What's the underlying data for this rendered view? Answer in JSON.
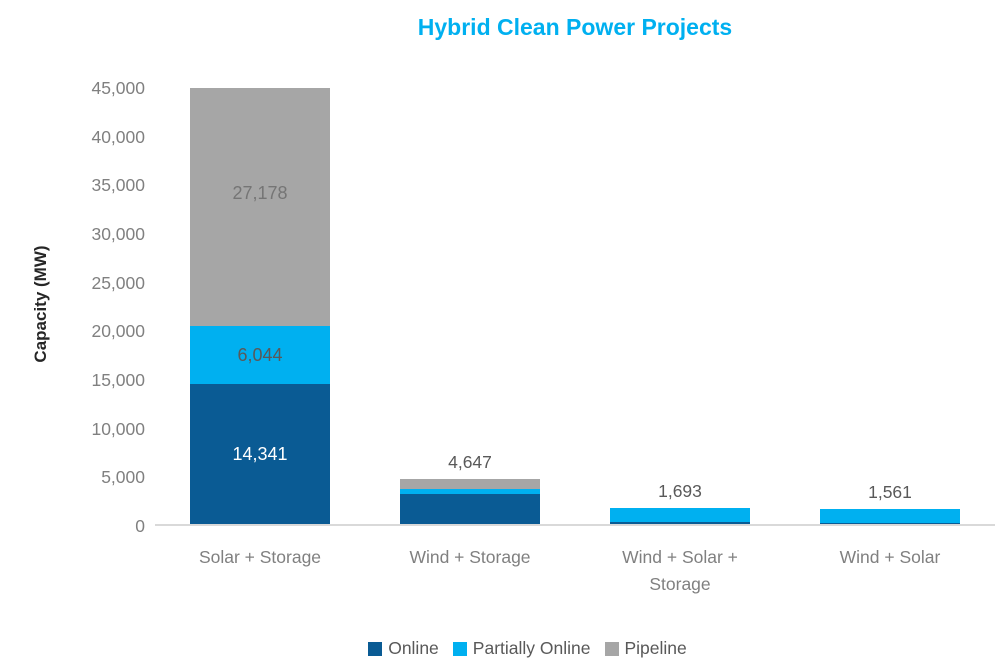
{
  "title_color": "#00B0F0",
  "chart_data": {
    "type": "bar",
    "stacked": true,
    "title": "Hybrid Clean Power Projects",
    "xlabel": "",
    "ylabel": "Capacity (MW)",
    "ylim": [
      0,
      45000
    ],
    "ytick_step": 5000,
    "grid": false,
    "legend_position": "bottom",
    "yticks": [
      "45,000",
      "40,000",
      "35,000",
      "30,000",
      "25,000",
      "20,000",
      "15,000",
      "10,000",
      "5,000",
      "0"
    ],
    "categories": [
      "Solar + Storage",
      "Wind + Storage",
      "Wind + Solar + Storage",
      "Wind + Solar"
    ],
    "series": [
      {
        "name": "Online",
        "color": "#0A5B94",
        "values": [
          14341,
          3060,
          250,
          130
        ]
      },
      {
        "name": "Partially Online",
        "color": "#00B0F0",
        "values": [
          6044,
          570,
          1353,
          1431
        ]
      },
      {
        "name": "Pipeline",
        "color": "#A6A6A6",
        "values": [
          27178,
          1017,
          90,
          0
        ]
      }
    ],
    "labeled_values_note": "Only bar-1 segment labels (14,341 / 6,044 / 27,178) and bar totals 4,647 / 1,693 / 1,561 are printed on the chart; other segment values are estimated from pixel heights",
    "totals": [
      47563,
      4647,
      1693,
      1561
    ],
    "total_labels": [
      "",
      "4,647",
      "1,693",
      "1,561"
    ],
    "bar1_segment_labels": {
      "online": "14,341",
      "partially_online": "6,044",
      "pipeline": "27,178"
    }
  },
  "legend": {
    "items": [
      {
        "label": "Online",
        "color": "#0A5B94"
      },
      {
        "label": "Partially Online",
        "color": "#00B0F0"
      },
      {
        "label": "Pipeline",
        "color": "#A6A6A6"
      }
    ]
  }
}
